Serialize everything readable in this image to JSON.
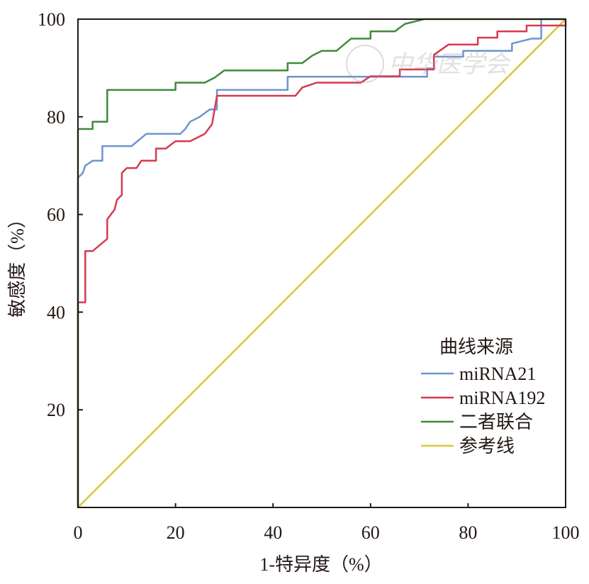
{
  "chart_data": {
    "type": "line",
    "title": "",
    "xlabel": "1-特异度（%）",
    "ylabel": "敏感度（%）",
    "xlim": [
      0,
      100
    ],
    "ylim": [
      0,
      100
    ],
    "x_ticks": [
      "0",
      "20",
      "40",
      "60",
      "80",
      "100"
    ],
    "y_ticks": [
      "20",
      "40",
      "60",
      "80",
      "100"
    ],
    "grid": false,
    "legend": {
      "title": "曲线来源",
      "position": "bottom-right"
    },
    "watermark": "中华医学会",
    "series": [
      {
        "name": "miRNA21",
        "color": "#6f93cf",
        "points": [
          [
            0,
            0
          ],
          [
            0,
            67.5
          ],
          [
            1,
            68.5
          ],
          [
            1.5,
            70
          ],
          [
            3,
            71
          ],
          [
            5,
            71
          ],
          [
            5,
            74
          ],
          [
            11,
            74
          ],
          [
            14,
            76.5
          ],
          [
            21,
            76.5
          ],
          [
            22,
            77.5
          ],
          [
            23,
            79
          ],
          [
            25,
            80
          ],
          [
            27,
            81.5
          ],
          [
            28.5,
            81.5
          ],
          [
            28.5,
            85.5
          ],
          [
            43,
            85.5
          ],
          [
            43,
            88.2
          ],
          [
            71.6,
            88.2
          ],
          [
            71.6,
            89.9
          ],
          [
            73,
            89.9
          ],
          [
            73,
            92.3
          ],
          [
            79,
            92.3
          ],
          [
            79,
            93.5
          ],
          [
            89,
            93.5
          ],
          [
            89,
            95
          ],
          [
            93,
            96
          ],
          [
            95,
            96
          ],
          [
            95,
            100
          ],
          [
            100,
            100
          ]
        ]
      },
      {
        "name": "miRNA192",
        "color": "#d63a4e",
        "points": [
          [
            0,
            0
          ],
          [
            0,
            42
          ],
          [
            1.5,
            42
          ],
          [
            1.5,
            52.5
          ],
          [
            3,
            52.5
          ],
          [
            6,
            55
          ],
          [
            6,
            59
          ],
          [
            7.5,
            61
          ],
          [
            8,
            63
          ],
          [
            9,
            64
          ],
          [
            9,
            68.5
          ],
          [
            10,
            69.5
          ],
          [
            12,
            69.5
          ],
          [
            13,
            71
          ],
          [
            16,
            71
          ],
          [
            16,
            73.5
          ],
          [
            18,
            73.5
          ],
          [
            20,
            75
          ],
          [
            23,
            75
          ],
          [
            26,
            76.5
          ],
          [
            27.5,
            78.5
          ],
          [
            28.5,
            84.3
          ],
          [
            44.6,
            84.3
          ],
          [
            46,
            86
          ],
          [
            49,
            87
          ],
          [
            58,
            87
          ],
          [
            60,
            88.3
          ],
          [
            66,
            88.3
          ],
          [
            66,
            89.7
          ],
          [
            73,
            89.7
          ],
          [
            73,
            92.7
          ],
          [
            76,
            94.8
          ],
          [
            82,
            94.8
          ],
          [
            82,
            96.2
          ],
          [
            86,
            96.2
          ],
          [
            86,
            97.5
          ],
          [
            92,
            97.5
          ],
          [
            92,
            98.7
          ],
          [
            100,
            98.7
          ],
          [
            100,
            100
          ]
        ]
      },
      {
        "name": "二者联合",
        "color": "#3f8a3a",
        "points": [
          [
            0,
            0
          ],
          [
            0,
            77.5
          ],
          [
            3,
            77.5
          ],
          [
            3,
            79
          ],
          [
            6,
            79
          ],
          [
            6,
            85.5
          ],
          [
            20,
            85.5
          ],
          [
            20,
            87
          ],
          [
            26,
            87
          ],
          [
            28,
            88
          ],
          [
            30,
            89.5
          ],
          [
            43,
            89.5
          ],
          [
            43,
            91
          ],
          [
            46,
            91
          ],
          [
            48,
            92.5
          ],
          [
            50,
            93.5
          ],
          [
            53,
            93.5
          ],
          [
            56,
            96
          ],
          [
            60,
            96
          ],
          [
            60,
            97.5
          ],
          [
            65,
            97.5
          ],
          [
            67,
            99
          ],
          [
            71,
            100
          ],
          [
            100,
            100
          ]
        ]
      },
      {
        "name": "参考线",
        "color": "#d8c640",
        "points": [
          [
            0,
            0
          ],
          [
            100,
            100
          ]
        ]
      }
    ]
  }
}
